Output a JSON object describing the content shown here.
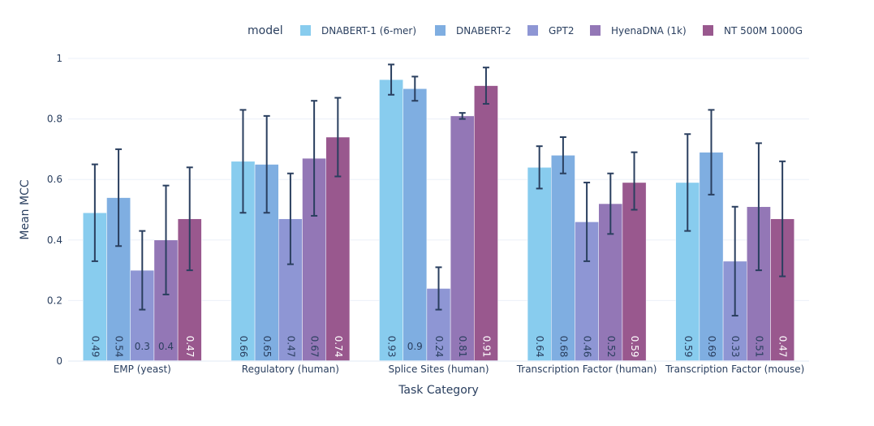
{
  "chart_data": {
    "type": "bar",
    "xlabel": "Task Category",
    "ylabel": "Mean MCC",
    "ylim": [
      0,
      1
    ],
    "yticks": [
      0,
      0.2,
      0.4,
      0.6,
      0.8,
      1
    ],
    "ytick_labels": [
      "0",
      "0.2",
      "0.4",
      "0.6",
      "0.8",
      "1"
    ],
    "grid": true,
    "legend_title": "model",
    "legend_position": "top",
    "categories": [
      "EMP (yeast)",
      "Regulatory (human)",
      "Splice Sites (human)",
      "Transcription Factor (human)",
      "Transcription Factor (mouse)"
    ],
    "series": [
      {
        "name": "DNABERT-1 (6-mer)",
        "color": "#88CCEE",
        "values": [
          0.49,
          0.66,
          0.93,
          0.64,
          0.59
        ],
        "labels": [
          "0.49",
          "0.66",
          "0.93",
          "0.64",
          "0.59"
        ],
        "error_low": [
          0.33,
          0.49,
          0.88,
          0.57,
          0.43
        ],
        "error_high": [
          0.65,
          0.83,
          0.98,
          0.71,
          0.75
        ]
      },
      {
        "name": "DNABERT-2",
        "color": "#7FAEE1",
        "values": [
          0.54,
          0.65,
          0.9,
          0.68,
          0.69
        ],
        "labels": [
          "0.54",
          "0.65",
          "0.9",
          "0.68",
          "0.69"
        ],
        "error_low": [
          0.38,
          0.49,
          0.86,
          0.62,
          0.55
        ],
        "error_high": [
          0.7,
          0.81,
          0.94,
          0.74,
          0.83
        ]
      },
      {
        "name": "GPT2",
        "color": "#8E96D4",
        "values": [
          0.3,
          0.47,
          0.24,
          0.46,
          0.33
        ],
        "labels": [
          "0.3",
          "0.47",
          "0.24",
          "0.46",
          "0.33"
        ],
        "error_low": [
          0.17,
          0.32,
          0.17,
          0.33,
          0.15
        ],
        "error_high": [
          0.43,
          0.62,
          0.31,
          0.59,
          0.51
        ]
      },
      {
        "name": "HyenaDNA (1k)",
        "color": "#9377B6",
        "values": [
          0.4,
          0.67,
          0.81,
          0.52,
          0.51
        ],
        "labels": [
          "0.4",
          "0.67",
          "0.81",
          "0.52",
          "0.51"
        ],
        "error_low": [
          0.22,
          0.48,
          0.8,
          0.42,
          0.3
        ],
        "error_high": [
          0.58,
          0.86,
          0.82,
          0.62,
          0.72
        ]
      },
      {
        "name": "NT 500M 1000G",
        "color": "#99588E",
        "values": [
          0.47,
          0.74,
          0.91,
          0.59,
          0.47
        ],
        "labels": [
          "0.47",
          "0.74",
          "0.91",
          "0.59",
          "0.47"
        ],
        "error_low": [
          0.3,
          0.61,
          0.85,
          0.5,
          0.28
        ],
        "error_high": [
          0.64,
          0.87,
          0.97,
          0.69,
          0.66
        ]
      }
    ]
  }
}
